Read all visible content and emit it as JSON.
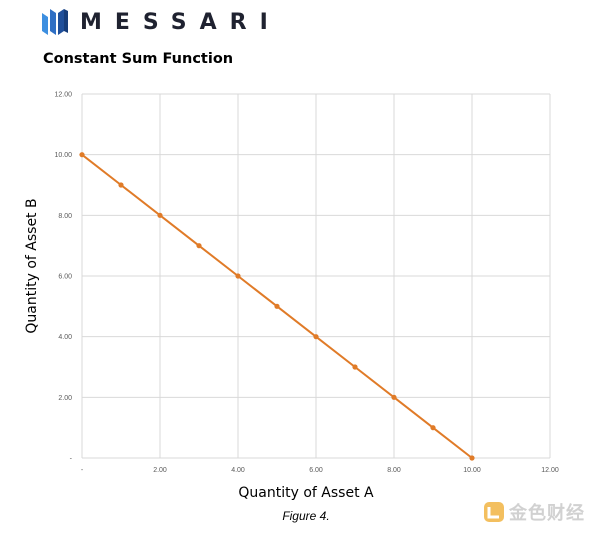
{
  "brand": {
    "name": "MESSARI",
    "logo_icon": "messari-logo-icon"
  },
  "watermark": {
    "text": "金色财经",
    "icon": "jinse-logo-icon"
  },
  "caption": "Figure 4.",
  "chart_data": {
    "type": "line",
    "title": "Constant Sum Function",
    "xlabel": "Quantity of Asset A",
    "ylabel": "Quantity of Asset B",
    "xlim": [
      0,
      12
    ],
    "ylim": [
      0,
      12
    ],
    "x_ticks": [
      0,
      2,
      4,
      6,
      8,
      10,
      12
    ],
    "y_ticks": [
      0,
      2,
      4,
      6,
      8,
      10,
      12
    ],
    "x_tick_labels": [
      "-",
      "2.00",
      "4.00",
      "6.00",
      "8.00",
      "10.00",
      "12.00"
    ],
    "y_tick_labels": [
      "-",
      "2.00",
      "4.00",
      "6.00",
      "8.00",
      "10.00",
      "12.00"
    ],
    "grid": true,
    "series": [
      {
        "color": "#e07b28",
        "x": [
          0,
          1,
          2,
          3,
          4,
          5,
          6,
          7,
          8,
          9,
          10
        ],
        "y": [
          10,
          9,
          8,
          7,
          6,
          5,
          4,
          3,
          2,
          1,
          0
        ]
      }
    ]
  }
}
